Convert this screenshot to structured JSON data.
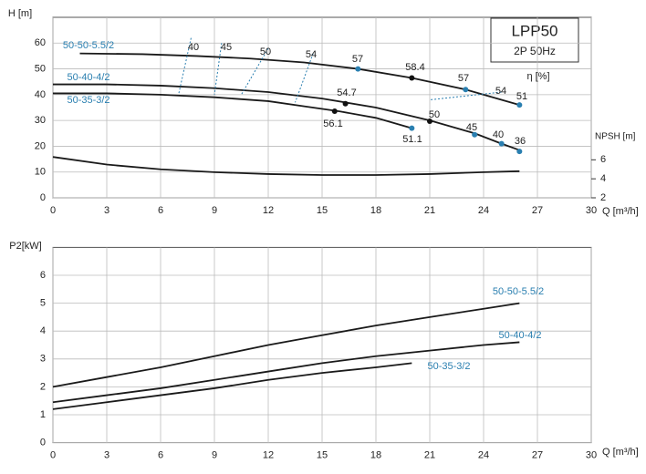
{
  "header": {
    "model": "LPP50",
    "spec": "2P  50Hz"
  },
  "chart_data": [
    {
      "type": "line",
      "y_label": "H [m]",
      "x_label": "Q [m³/h]",
      "y2_label": "NPSH [m]",
      "efficiency_label": "η [%]",
      "xlim": [
        0,
        30
      ],
      "xticks": [
        0,
        3,
        6,
        9,
        12,
        15,
        18,
        21,
        24,
        27,
        30
      ],
      "ylim": [
        0,
        70
      ],
      "yticks": [
        0,
        10,
        20,
        30,
        40,
        50,
        60
      ],
      "y2lim": [
        2,
        21
      ],
      "y2ticks": [
        2,
        4,
        6
      ],
      "grid": true,
      "annotations": [
        "40",
        "45",
        "50",
        "54",
        "57",
        "58.4",
        "57",
        "54",
        "51",
        "54.7",
        "56.1",
        "50",
        "45",
        "40",
        "36",
        "51.1"
      ],
      "series": [
        {
          "name": "50-50-5.5/2",
          "color": "#1a1a1a",
          "x": [
            1.5,
            5,
            8,
            11,
            14,
            17,
            20,
            23,
            26
          ],
          "values": [
            56,
            55.7,
            55,
            54,
            52.5,
            50,
            46.5,
            42,
            36
          ]
        },
        {
          "name": "50-40-4/2",
          "color": "#1a1a1a",
          "x": [
            0,
            3,
            6,
            9,
            12,
            15,
            18,
            21,
            23.5,
            25,
            26
          ],
          "values": [
            44,
            44,
            43.5,
            42.5,
            41,
            38.5,
            35,
            30,
            25,
            21,
            18.5
          ]
        },
        {
          "name": "50-35-3/2",
          "color": "#1a1a1a",
          "x": [
            0,
            3,
            6,
            9,
            12,
            14,
            16,
            18,
            20
          ],
          "values": [
            40.5,
            40.5,
            40,
            39,
            37.5,
            35.5,
            33.5,
            31,
            27
          ]
        },
        {
          "color": "#1a1a1a",
          "axis": "y2",
          "x": [
            0,
            3,
            6,
            9,
            12,
            15,
            18,
            21,
            24,
            26
          ],
          "values": [
            6.3,
            5.5,
            5,
            4.7,
            4.5,
            4.4,
            4.4,
            4.5,
            4.7,
            4.8
          ]
        }
      ]
    },
    {
      "type": "line",
      "y_label": "P2[kW]",
      "x_label": "Q [m³/h]",
      "xlim": [
        0,
        30
      ],
      "xticks": [
        0,
        3,
        6,
        9,
        12,
        15,
        18,
        21,
        24,
        27,
        30
      ],
      "ylim": [
        0,
        7
      ],
      "yticks": [
        0,
        1,
        2,
        3,
        4,
        5,
        6
      ],
      "grid": true,
      "series": [
        {
          "name": "50-50-5.5/2",
          "color": "#1a1a1a",
          "x": [
            0,
            3,
            6,
            9,
            12,
            15,
            18,
            21,
            24,
            26
          ],
          "values": [
            2,
            2.35,
            2.7,
            3.1,
            3.5,
            3.85,
            4.2,
            4.5,
            4.8,
            5
          ]
        },
        {
          "name": "50-40-4/2",
          "color": "#1a1a1a",
          "x": [
            0,
            3,
            6,
            9,
            12,
            15,
            18,
            21,
            24,
            26
          ],
          "values": [
            1.45,
            1.7,
            1.95,
            2.25,
            2.55,
            2.85,
            3.1,
            3.3,
            3.5,
            3.6
          ]
        },
        {
          "name": "50-35-3/2",
          "color": "#1a1a1a",
          "x": [
            0,
            3,
            6,
            9,
            12,
            15,
            18,
            20
          ],
          "values": [
            1.2,
            1.45,
            1.7,
            1.95,
            2.25,
            2.5,
            2.7,
            2.85
          ]
        }
      ]
    }
  ]
}
